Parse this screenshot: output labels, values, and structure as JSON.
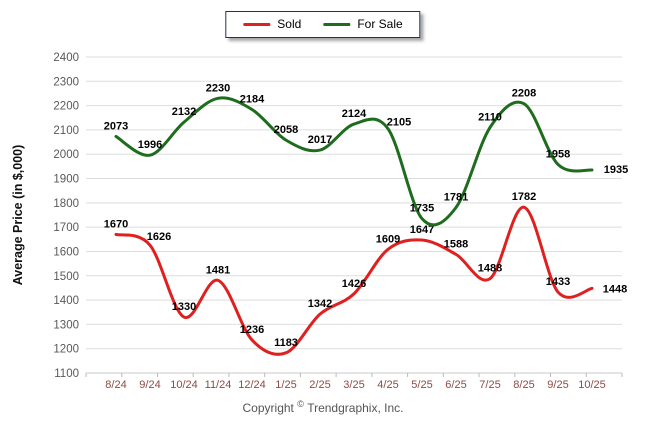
{
  "legend": {
    "items": [
      {
        "label": "Sold",
        "color": "#e01f1f"
      },
      {
        "label": "For Sale",
        "color": "#1e6c1e"
      }
    ]
  },
  "footer": {
    "prefix": "Copyright",
    "symbol": "©",
    "suffix": "Trendgraphix, Inc."
  },
  "colors": {
    "grid": "#dedede",
    "axis_line": "#c8c8c8",
    "tick": "#bbbbbb",
    "x_label": "#8e4b44",
    "y_label": "#595959",
    "data_label": "#000000"
  },
  "chart_data": {
    "type": "line",
    "title": "",
    "xlabel": "",
    "ylabel": "Average Price (in $,000)",
    "ylim": [
      1100,
      2400
    ],
    "ytick_step": 100,
    "grid": "horizontal",
    "legend_position": "top-center",
    "categories": [
      "8/24",
      "9/24",
      "10/24",
      "11/24",
      "12/24",
      "1/25",
      "2/25",
      "3/25",
      "4/25",
      "5/25",
      "6/25",
      "7/25",
      "8/25",
      "9/25",
      "10/25"
    ],
    "series": [
      {
        "name": "Sold",
        "color": "#e01f1f",
        "values": [
          1670,
          1626,
          1330,
          1481,
          1236,
          1183,
          1342,
          1426,
          1609,
          1647,
          1588,
          1488,
          1782,
          1433,
          1448
        ]
      },
      {
        "name": "For Sale",
        "color": "#1e6c1e",
        "values": [
          2073,
          1996,
          2132,
          2230,
          2184,
          2058,
          2017,
          2124,
          2105,
          1735,
          1781,
          2110,
          2208,
          1958,
          1935
        ]
      }
    ]
  }
}
